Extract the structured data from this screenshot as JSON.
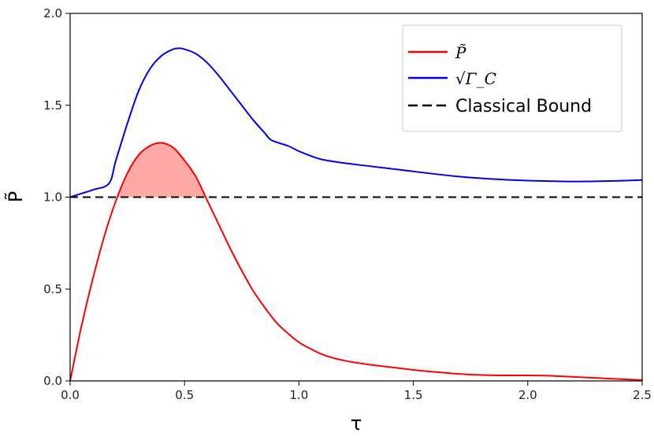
{
  "chart_data": {
    "type": "line",
    "xlabel": "τ",
    "ylabel": "P̃",
    "xlim": [
      0.0,
      2.5
    ],
    "ylim": [
      0.0,
      2.0
    ],
    "xticks": [
      "0.0",
      "0.5",
      "1.0",
      "1.5",
      "2.0",
      "2.5"
    ],
    "yticks": [
      "0.0",
      "0.5",
      "1.0",
      "1.5",
      "2.0"
    ],
    "grid": false,
    "legend_position": "top-right",
    "series": [
      {
        "name": "P̃",
        "color": "#ff0000",
        "style": "solid",
        "x": [
          0.0,
          0.05,
          0.1,
          0.15,
          0.2,
          0.25,
          0.3,
          0.35,
          0.4,
          0.45,
          0.5,
          0.55,
          0.6,
          0.65,
          0.7,
          0.75,
          0.8,
          0.85,
          0.9,
          0.95,
          1.0,
          1.05,
          1.1,
          1.15,
          1.2,
          1.3,
          1.4,
          1.5,
          1.6,
          1.7,
          1.8,
          1.9,
          2.0,
          2.1,
          2.2,
          2.3,
          2.4,
          2.5
        ],
        "values": [
          0.0,
          0.3,
          0.56,
          0.79,
          0.98,
          1.13,
          1.23,
          1.28,
          1.295,
          1.27,
          1.2,
          1.11,
          0.98,
          0.85,
          0.72,
          0.6,
          0.49,
          0.4,
          0.32,
          0.26,
          0.21,
          0.175,
          0.145,
          0.125,
          0.11,
          0.09,
          0.075,
          0.06,
          0.048,
          0.038,
          0.032,
          0.03,
          0.03,
          0.028,
          0.022,
          0.016,
          0.01,
          0.005
        ]
      },
      {
        "name": "√Γ_C",
        "color": "#0000ee",
        "style": "solid",
        "x": [
          0.0,
          0.05,
          0.1,
          0.17,
          0.2,
          0.25,
          0.3,
          0.35,
          0.4,
          0.45,
          0.48,
          0.5,
          0.55,
          0.6,
          0.65,
          0.7,
          0.75,
          0.8,
          0.85,
          0.88,
          0.95,
          1.0,
          1.05,
          1.1,
          1.2,
          1.3,
          1.4,
          1.5,
          1.6,
          1.7,
          1.8,
          1.9,
          2.0,
          2.1,
          2.2,
          2.3,
          2.4,
          2.5
        ],
        "values": [
          1.0,
          1.02,
          1.04,
          1.075,
          1.2,
          1.4,
          1.58,
          1.7,
          1.77,
          1.805,
          1.81,
          1.805,
          1.78,
          1.73,
          1.66,
          1.58,
          1.5,
          1.42,
          1.35,
          1.31,
          1.28,
          1.25,
          1.225,
          1.205,
          1.185,
          1.17,
          1.155,
          1.14,
          1.125,
          1.112,
          1.102,
          1.095,
          1.09,
          1.087,
          1.085,
          1.086,
          1.089,
          1.093
        ]
      },
      {
        "name": "Classical Bound",
        "color": "#000000",
        "style": "dashed",
        "x": [
          0.0,
          2.5
        ],
        "values": [
          1.0,
          1.0
        ]
      }
    ],
    "shaded_region": {
      "description_free": true,
      "color": "#ff9999",
      "x_from": 0.21,
      "x_to": 0.61,
      "between": [
        "P̃",
        "Classical Bound"
      ]
    }
  }
}
